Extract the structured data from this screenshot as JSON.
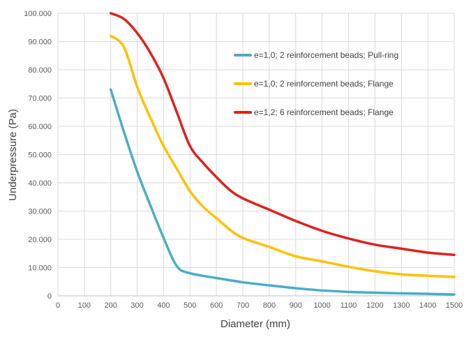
{
  "chart_data": {
    "type": "line",
    "title": "",
    "xlabel": "Diameter (mm)",
    "ylabel": "Underpressure (Pa)",
    "xlim": [
      0,
      1500
    ],
    "ylim": [
      0,
      100000
    ],
    "x_ticks": [
      0,
      100,
      200,
      300,
      400,
      500,
      600,
      700,
      800,
      900,
      1000,
      1100,
      1200,
      1300,
      1400,
      1500
    ],
    "x_tick_labels": [
      "0",
      "100",
      "200",
      "300",
      "400",
      "500",
      "600",
      "700",
      "800",
      "900",
      "1000",
      "1100",
      "1200",
      "1300",
      "1400",
      "1500"
    ],
    "y_ticks": [
      0,
      10000,
      20000,
      30000,
      40000,
      50000,
      60000,
      70000,
      80000,
      90000,
      100000
    ],
    "y_tick_labels": [
      "0",
      "10.000",
      "20.000",
      "30.000",
      "40.000",
      "50.000",
      "60.000",
      "70.000",
      "80.000",
      "90.000",
      "100.000"
    ],
    "grid": true,
    "legend_position": "top-right",
    "series": [
      {
        "name": "e=1,0; 2 reinforcement beads; Pull-ring",
        "color": "#4BACC6",
        "x": [
          200,
          250,
          300,
          350,
          400,
          450,
          500,
          600,
          700,
          800,
          900,
          1000,
          1100,
          1200,
          1300,
          1400,
          1500
        ],
        "values": [
          73000,
          58000,
          44000,
          32000,
          20500,
          10500,
          8000,
          6300,
          4800,
          3700,
          2700,
          1900,
          1400,
          1100,
          900,
          700,
          500
        ]
      },
      {
        "name": "e=1,0; 2 reinforcement beads; Flange",
        "color": "#FFC000",
        "x": [
          200,
          250,
          300,
          350,
          400,
          450,
          500,
          550,
          600,
          650,
          700,
          800,
          900,
          1000,
          1100,
          1200,
          1300,
          1400,
          1500
        ],
        "values": [
          92000,
          88000,
          74000,
          63000,
          53000,
          45000,
          37000,
          31500,
          27500,
          23500,
          20500,
          17300,
          14000,
          12200,
          10300,
          8700,
          7600,
          7100,
          6700
        ]
      },
      {
        "name": "e=1,2; 6 reinforcement beads; Flange",
        "color": "#E0201B",
        "x": [
          200,
          250,
          300,
          350,
          400,
          450,
          500,
          550,
          600,
          650,
          700,
          800,
          900,
          1000,
          1100,
          1200,
          1300,
          1400,
          1500
        ],
        "values": [
          100000,
          98000,
          93000,
          86000,
          77000,
          65000,
          53000,
          47000,
          42000,
          37500,
          34500,
          30500,
          26500,
          23000,
          20300,
          18100,
          16700,
          15300,
          14500
        ]
      }
    ]
  }
}
